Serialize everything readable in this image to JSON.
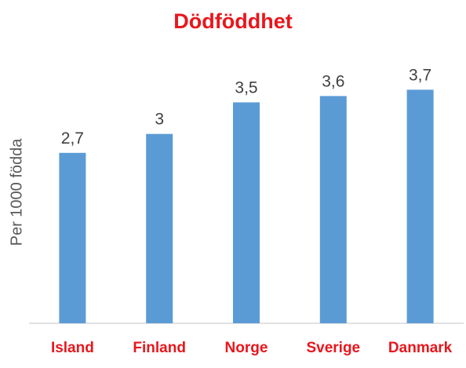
{
  "chart_data": {
    "type": "bar",
    "title": "Dödföddhet",
    "xlabel": "",
    "ylabel": "Per 1000 födda",
    "categories": [
      "Island",
      "Finland",
      "Norge",
      "Sverige",
      "Danmark"
    ],
    "values": [
      2.7,
      3,
      3.5,
      3.6,
      3.7
    ],
    "value_labels": [
      "2,7",
      "3",
      "3,5",
      "3,6",
      "3,7"
    ],
    "ylim": [
      0,
      4.5
    ],
    "grid": false,
    "legend": "none",
    "colors": {
      "bar": "#5b9bd5",
      "title": "#e8161c",
      "category_text": "#e8161c",
      "value_text": "#404040",
      "axis": "#d9d9d9"
    }
  }
}
